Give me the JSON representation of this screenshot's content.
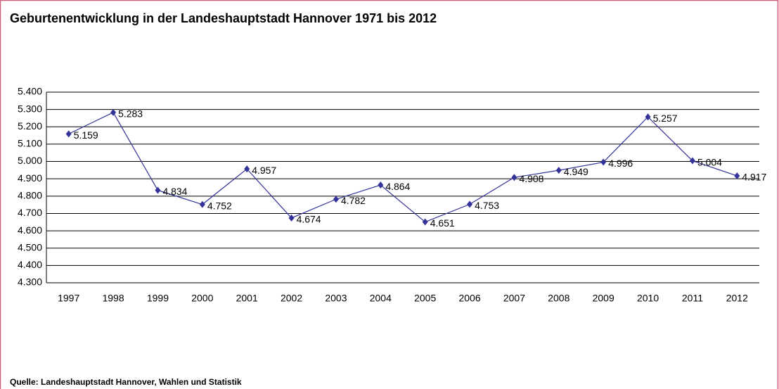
{
  "chart_data": {
    "type": "line",
    "title": "Geburtenentwicklung in der Landeshauptstadt Hannover 1971 bis 2012",
    "source": "Quelle: Landeshauptstadt Hannover, Wahlen und Statistik",
    "categories": [
      "1997",
      "1998",
      "1999",
      "2000",
      "2001",
      "2002",
      "2003",
      "2004",
      "2005",
      "2006",
      "2007",
      "2008",
      "2009",
      "2010",
      "2011",
      "2012"
    ],
    "values": [
      5159,
      5283,
      4834,
      4752,
      4957,
      4674,
      4782,
      4864,
      4651,
      4753,
      4908,
      4949,
      4996,
      5257,
      5004,
      4917
    ],
    "value_labels": [
      "5.159",
      "5.283",
      "4.834",
      "4.752",
      "4.957",
      "4.674",
      "4.782",
      "4.864",
      "4.651",
      "4.753",
      "4.908",
      "4.949",
      "4.996",
      "5.257",
      "5.004",
      "4.917"
    ],
    "color": "#333399",
    "ylim": [
      4300,
      5400
    ],
    "yticks": [
      {
        "value": 4300,
        "label": "4.300"
      },
      {
        "value": 4400,
        "label": "4.400"
      },
      {
        "value": 4500,
        "label": "4.500"
      },
      {
        "value": 4600,
        "label": "4.600"
      },
      {
        "value": 4700,
        "label": "4.700"
      },
      {
        "value": 4800,
        "label": "4.800"
      },
      {
        "value": 4900,
        "label": "4.900"
      },
      {
        "value": 5000,
        "label": "5.000"
      },
      {
        "value": 5100,
        "label": "5.100"
      },
      {
        "value": 5200,
        "label": "5.200"
      },
      {
        "value": 5300,
        "label": "5.300"
      },
      {
        "value": 5400,
        "label": "5.400"
      }
    ],
    "grid": true
  }
}
